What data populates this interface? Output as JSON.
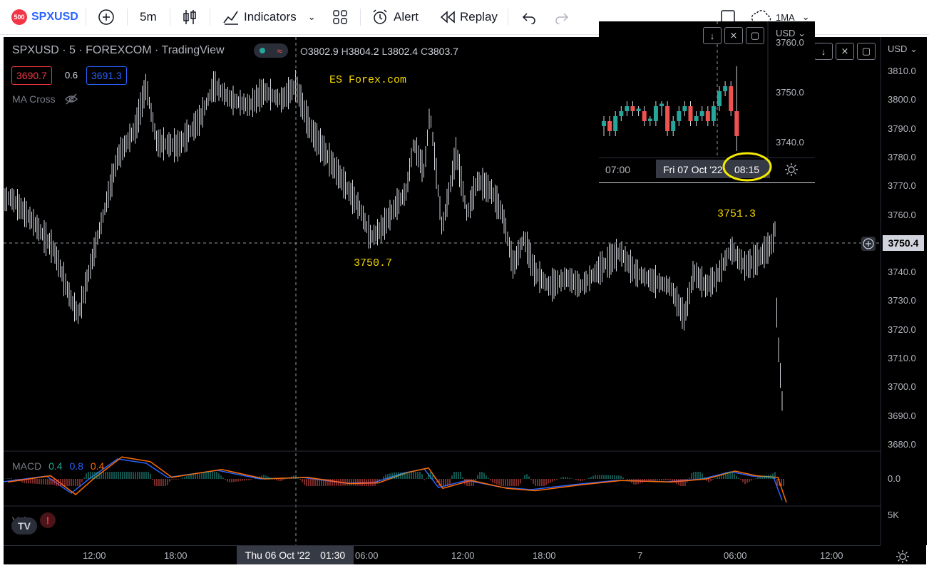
{
  "toolbar": {
    "symbol_badge": "500",
    "symbol": "SPXUSD",
    "interval": "5m",
    "indicators_label": "Indicators",
    "alert_label": "Alert",
    "replay_label": "Replay",
    "right_text": "1MA"
  },
  "legend": {
    "title": "SPXUSD · 5 · FOREXCOM · TradingView",
    "ohlc": {
      "o_label": "O",
      "o": "3802.9",
      "h_label": "H",
      "h": "3804.2",
      "l_label": "L",
      "l": "3802.4",
      "c_label": "C",
      "c": "3803.7"
    },
    "bid": "3690.7",
    "spread": "0.6",
    "ask": "3691.3",
    "ma_cross": "MA Cross",
    "macd_label": "MACD",
    "macd_vals": [
      "0.4",
      "0.8",
      "0.4"
    ],
    "vol_label": "Vol"
  },
  "annotations": {
    "es_forex": "ES   Forex.com",
    "low_level": "3750.7",
    "high_level": "3751.3"
  },
  "price_axis": {
    "currency": "USD",
    "ticks": [
      "3810.0",
      "3800.0",
      "3790.0",
      "3780.0",
      "3770.0",
      "3760.0",
      "3750.0",
      "3740.0",
      "3730.0",
      "3720.0",
      "3710.0",
      "3700.0",
      "3690.0",
      "3680.0"
    ],
    "crosshair_price": "3750.4",
    "macd_tick": "0.0",
    "vol_tick": "5K"
  },
  "time_axis": {
    "ticks": [
      "12:00",
      "18:00",
      "06:00",
      "12:00",
      "18:00",
      "7",
      "06:00",
      "12:00"
    ],
    "crosshair_date": "Thu 06 Oct '22",
    "crosshair_time": "01:30"
  },
  "inset": {
    "currency": "USD",
    "prices": [
      "3760.0",
      "3750.0",
      "3740.0"
    ],
    "time_left": "07:00",
    "date": "Fri 07 Oct '22",
    "time_highlight": "08:15"
  },
  "colors": {
    "up": "#26a69a",
    "down": "#ef5350",
    "bar": "#d1d4dc",
    "annotation": "#f5d800",
    "macd": "#2962ff",
    "signal": "#ff6d00"
  }
}
